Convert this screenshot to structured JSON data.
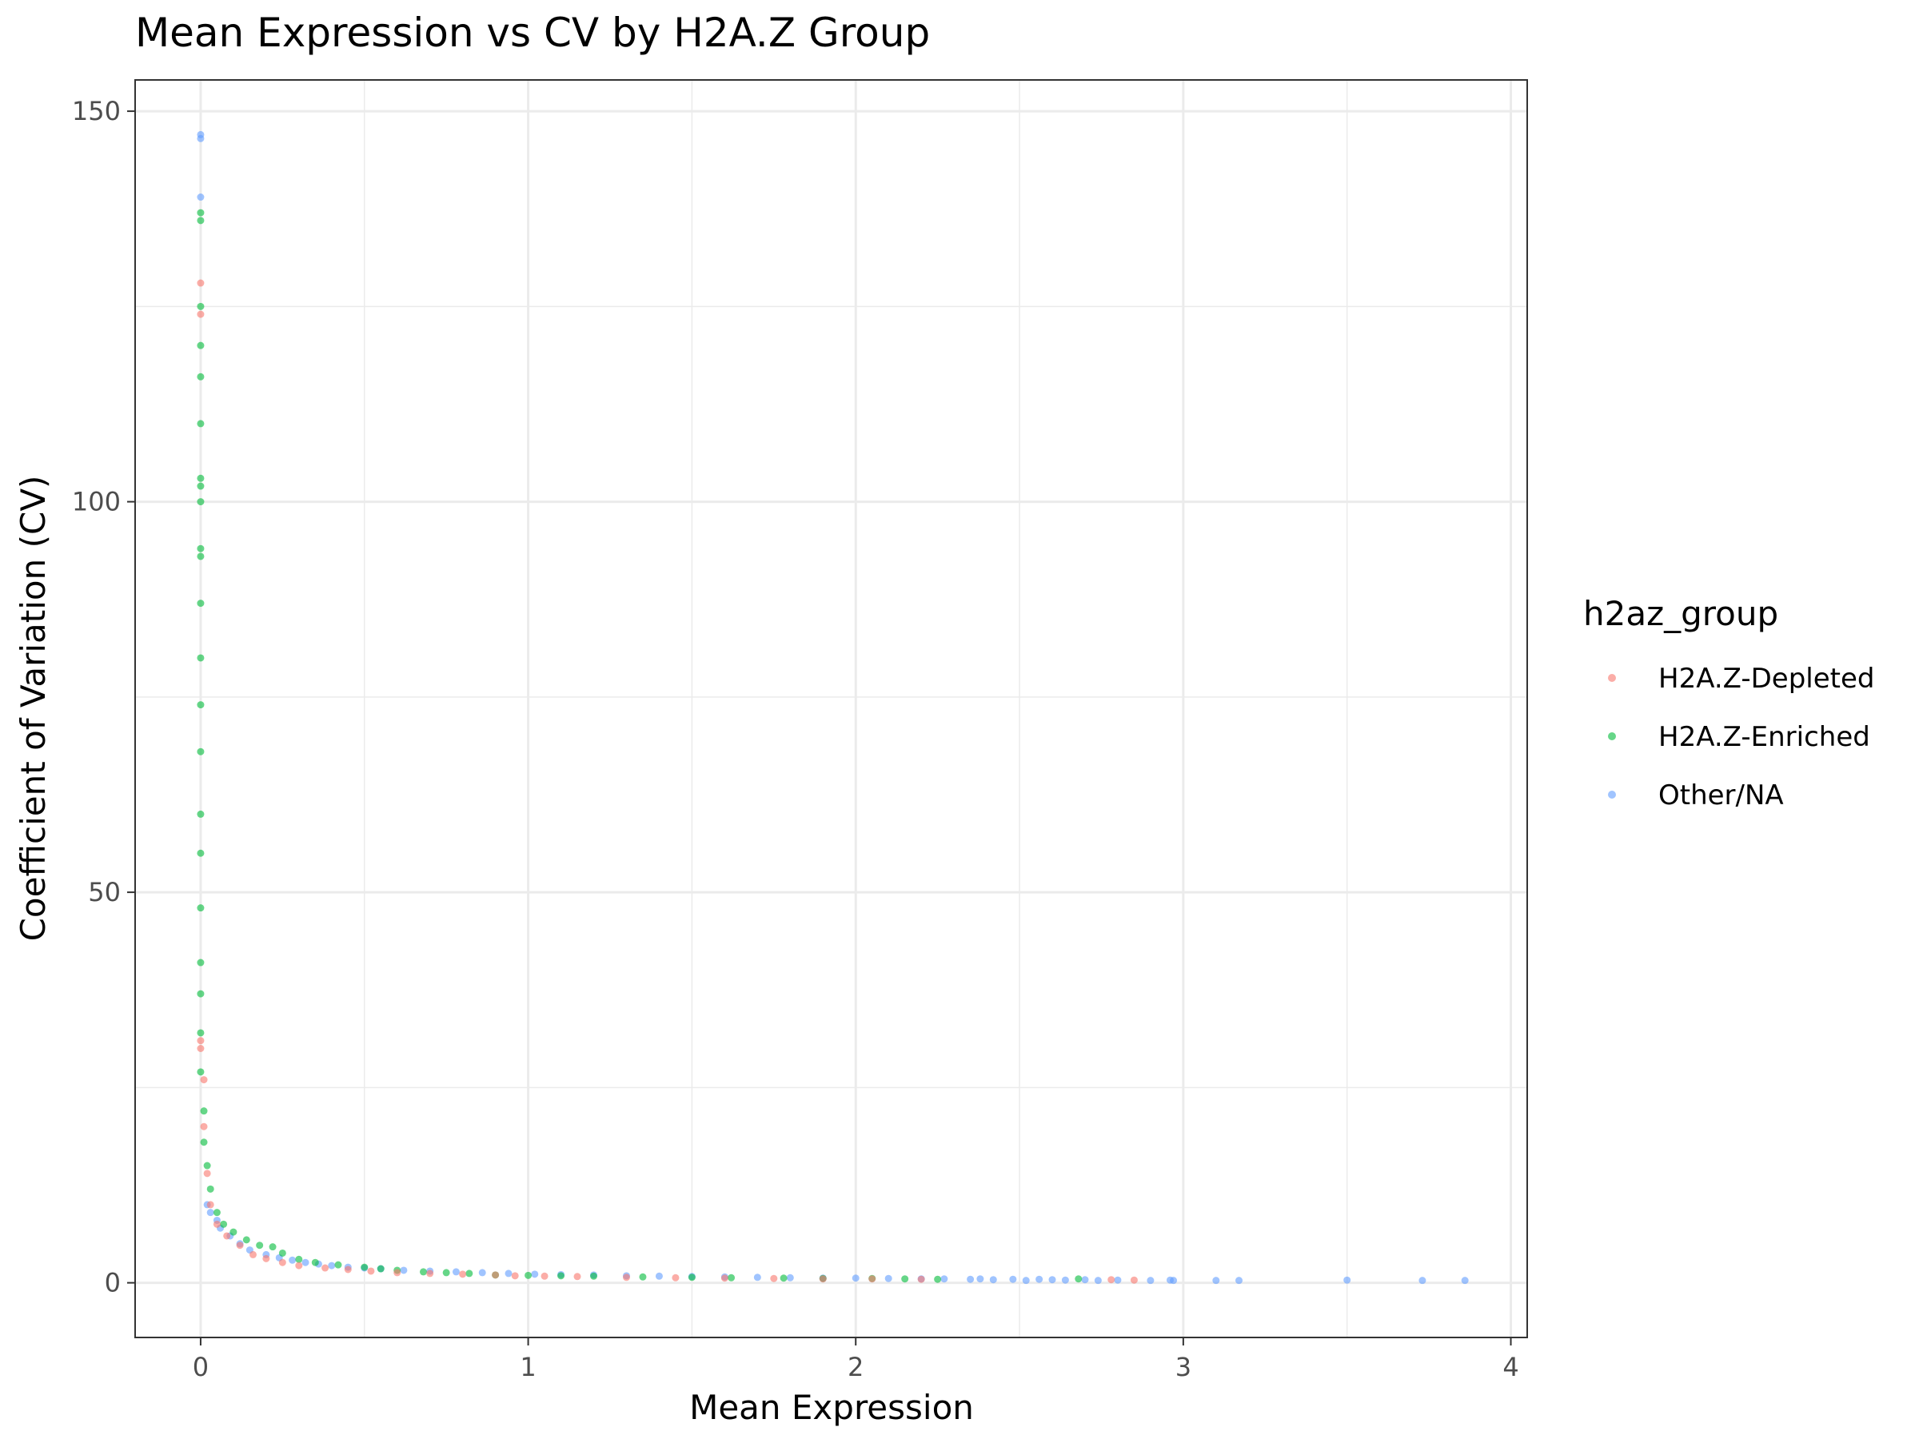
{
  "chart_data": {
    "type": "scatter",
    "title": "Mean Expression vs CV by H2A.Z Group",
    "xlabel": "Mean Expression",
    "ylabel": "Coefficient of Variation (CV)",
    "xlim": [
      -0.2,
      4.05
    ],
    "ylim": [
      -7,
      154
    ],
    "x_ticks": [
      0,
      1,
      2,
      3,
      4
    ],
    "y_ticks": [
      0,
      50,
      100,
      150
    ],
    "grid": true,
    "legend": {
      "title": "h2az_group",
      "placement": "right",
      "entries": [
        {
          "name": "H2A.Z-Depleted",
          "color": "#F8766D"
        },
        {
          "name": "H2A.Z-Enriched",
          "color": "#00BA38"
        },
        {
          "name": "Other/NA",
          "color": "#619CFF"
        }
      ]
    },
    "series": [
      {
        "name": "H2A.Z-Depleted",
        "color": "#F8766D",
        "points": [
          [
            0.0,
            128
          ],
          [
            0.0,
            124
          ],
          [
            0.0,
            31
          ],
          [
            0.0,
            30
          ],
          [
            0.01,
            26
          ],
          [
            0.01,
            20
          ],
          [
            0.02,
            14
          ],
          [
            0.03,
            10
          ],
          [
            0.05,
            7.5
          ],
          [
            0.08,
            6
          ],
          [
            0.12,
            4.8
          ],
          [
            0.16,
            3.6
          ],
          [
            0.2,
            3.1
          ],
          [
            0.25,
            2.6
          ],
          [
            0.3,
            2.2
          ],
          [
            0.38,
            1.9
          ],
          [
            0.45,
            1.7
          ],
          [
            0.52,
            1.5
          ],
          [
            0.6,
            1.3
          ],
          [
            0.7,
            1.2
          ],
          [
            0.8,
            1.1
          ],
          [
            0.9,
            1.0
          ],
          [
            0.96,
            0.9
          ],
          [
            1.05,
            0.85
          ],
          [
            1.15,
            0.8
          ],
          [
            1.3,
            0.7
          ],
          [
            1.45,
            0.65
          ],
          [
            1.6,
            0.6
          ],
          [
            1.75,
            0.55
          ],
          [
            1.9,
            0.5
          ],
          [
            2.05,
            0.5
          ],
          [
            2.2,
            0.45
          ],
          [
            2.78,
            0.4
          ],
          [
            2.85,
            0.35
          ]
        ]
      },
      {
        "name": "H2A.Z-Enriched",
        "color": "#00BA38",
        "points": [
          [
            0.0,
            137
          ],
          [
            0.0,
            136
          ],
          [
            0.0,
            125
          ],
          [
            0.0,
            120
          ],
          [
            0.0,
            116
          ],
          [
            0.0,
            110
          ],
          [
            0.0,
            103
          ],
          [
            0.0,
            102
          ],
          [
            0.0,
            100
          ],
          [
            0.0,
            94
          ],
          [
            0.0,
            93
          ],
          [
            0.0,
            87
          ],
          [
            0.0,
            80
          ],
          [
            0.0,
            74
          ],
          [
            0.0,
            68
          ],
          [
            0.0,
            60
          ],
          [
            0.0,
            55
          ],
          [
            0.0,
            48
          ],
          [
            0.0,
            41
          ],
          [
            0.0,
            37
          ],
          [
            0.0,
            32
          ],
          [
            0.0,
            27
          ],
          [
            0.01,
            22
          ],
          [
            0.01,
            18
          ],
          [
            0.02,
            15
          ],
          [
            0.03,
            12
          ],
          [
            0.05,
            9
          ],
          [
            0.07,
            7.5
          ],
          [
            0.1,
            6.5
          ],
          [
            0.14,
            5.5
          ],
          [
            0.18,
            4.8
          ],
          [
            0.22,
            4.6
          ],
          [
            0.25,
            3.8
          ],
          [
            0.3,
            3.0
          ],
          [
            0.35,
            2.6
          ],
          [
            0.42,
            2.3
          ],
          [
            0.5,
            2.0
          ],
          [
            0.55,
            1.8
          ],
          [
            0.6,
            1.6
          ],
          [
            0.68,
            1.4
          ],
          [
            0.75,
            1.3
          ],
          [
            0.82,
            1.2
          ],
          [
            0.9,
            1.0
          ],
          [
            1.0,
            0.95
          ],
          [
            1.1,
            0.9
          ],
          [
            1.2,
            0.85
          ],
          [
            1.35,
            0.75
          ],
          [
            1.5,
            0.7
          ],
          [
            1.62,
            0.65
          ],
          [
            1.78,
            0.6
          ],
          [
            1.9,
            0.55
          ],
          [
            2.05,
            0.55
          ],
          [
            2.15,
            0.5
          ],
          [
            2.25,
            0.45
          ],
          [
            2.68,
            0.5
          ]
        ]
      },
      {
        "name": "Other/NA",
        "color": "#619CFF",
        "points": [
          [
            0.0,
            147
          ],
          [
            0.0,
            146.5
          ],
          [
            0.0,
            139
          ],
          [
            0.02,
            10
          ],
          [
            0.03,
            9
          ],
          [
            0.05,
            8
          ],
          [
            0.06,
            7
          ],
          [
            0.09,
            6
          ],
          [
            0.12,
            5
          ],
          [
            0.15,
            4.2
          ],
          [
            0.2,
            3.6
          ],
          [
            0.24,
            3.2
          ],
          [
            0.28,
            2.9
          ],
          [
            0.32,
            2.6
          ],
          [
            0.36,
            2.4
          ],
          [
            0.4,
            2.2
          ],
          [
            0.45,
            2.0
          ],
          [
            0.5,
            1.9
          ],
          [
            0.55,
            1.8
          ],
          [
            0.62,
            1.6
          ],
          [
            0.7,
            1.5
          ],
          [
            0.78,
            1.4
          ],
          [
            0.86,
            1.3
          ],
          [
            0.94,
            1.2
          ],
          [
            1.02,
            1.1
          ],
          [
            1.1,
            1.05
          ],
          [
            1.2,
            1.0
          ],
          [
            1.3,
            0.9
          ],
          [
            1.4,
            0.85
          ],
          [
            1.5,
            0.8
          ],
          [
            1.6,
            0.75
          ],
          [
            1.7,
            0.7
          ],
          [
            1.8,
            0.65
          ],
          [
            1.9,
            0.6
          ],
          [
            2.0,
            0.6
          ],
          [
            2.1,
            0.55
          ],
          [
            2.2,
            0.5
          ],
          [
            2.27,
            0.5
          ],
          [
            2.35,
            0.45
          ],
          [
            2.38,
            0.5
          ],
          [
            2.42,
            0.4
          ],
          [
            2.48,
            0.45
          ],
          [
            2.52,
            0.3
          ],
          [
            2.56,
            0.45
          ],
          [
            2.6,
            0.4
          ],
          [
            2.64,
            0.35
          ],
          [
            2.7,
            0.4
          ],
          [
            2.74,
            0.3
          ],
          [
            2.8,
            0.35
          ],
          [
            2.9,
            0.3
          ],
          [
            2.96,
            0.35
          ],
          [
            2.97,
            0.3
          ],
          [
            3.1,
            0.3
          ],
          [
            3.17,
            0.3
          ],
          [
            3.5,
            0.35
          ],
          [
            3.73,
            0.3
          ],
          [
            3.86,
            0.3
          ]
        ]
      }
    ]
  }
}
